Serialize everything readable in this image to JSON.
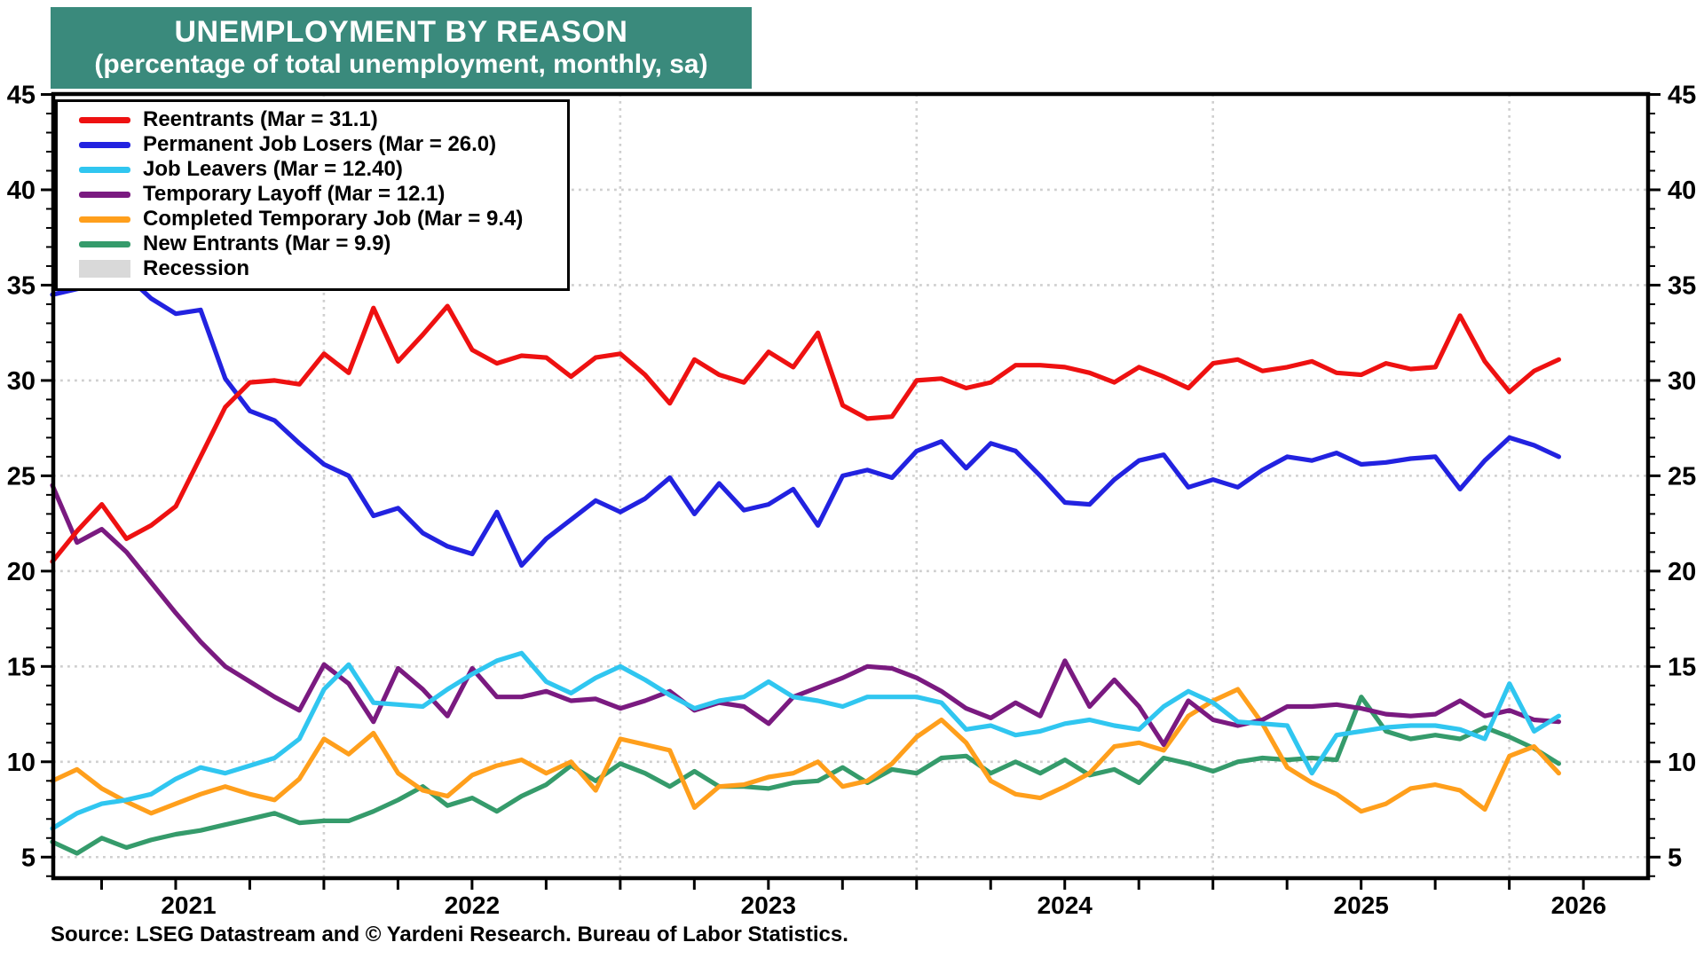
{
  "title": {
    "line1": "UNEMPLOYMENT BY REASON",
    "line2": "(percentage of total unemployment, monthly, sa)"
  },
  "source": "Source: LSEG Datastream and © Yardeni Research. Bureau of Labor Statistics.",
  "legend": {
    "items": [
      {
        "label": "Reentrants (Mar = 31.1)",
        "color": "#ee1111",
        "type": "line"
      },
      {
        "label": "Permanent Job Losers (Mar = 26.0)",
        "color": "#2222e0",
        "type": "line"
      },
      {
        "label": "Job Leavers (Mar = 12.40)",
        "color": "#30c6f0",
        "type": "line"
      },
      {
        "label": "Temporary Layoff (Mar = 12.1)",
        "color": "#7a1a80",
        "type": "line"
      },
      {
        "label": "Completed Temporary Job (Mar = 9.4)",
        "color": "#ff9f1c",
        "type": "line"
      },
      {
        "label": "New Entrants (Mar = 9.9)",
        "color": "#359b6b",
        "type": "line"
      },
      {
        "label": "Recession",
        "color": "#d9d9d9",
        "type": "band"
      }
    ]
  },
  "axes": {
    "y_major_ticks": [
      45,
      40,
      35,
      30,
      25,
      20,
      15,
      10,
      5
    ],
    "y_minor_step": 1,
    "y_range": [
      3.9,
      45
    ],
    "x_year_labels": [
      "2021",
      "2022",
      "2023",
      "2024",
      "2025",
      "2026"
    ],
    "grid": "dotted light-gray, horizontal every 5 units, vertical at each January"
  },
  "chart_data": {
    "type": "line",
    "title": "UNEMPLOYMENT BY REASON",
    "subtitle": "(percentage of total unemployment, monthly, sa)",
    "ylabel": "percent of total unemployment",
    "ylim": [
      5,
      45
    ],
    "legend_position": "top-left",
    "frequency": "monthly",
    "start_month": "2021-02",
    "end_month": "2026-03",
    "series": [
      {
        "name": "Reentrants (Mar = 31.1)",
        "color": "#ee1111",
        "values": [
          20.5,
          22.1,
          23.5,
          21.7,
          22.4,
          23.4,
          26.0,
          28.6,
          29.9,
          30.0,
          29.8,
          31.4,
          30.4,
          33.8,
          31.0,
          32.4,
          33.9,
          31.6,
          30.9,
          31.3,
          31.2,
          30.2,
          31.2,
          31.4,
          30.3,
          28.8,
          31.1,
          30.3,
          29.9,
          31.5,
          30.7,
          32.5,
          28.7,
          28.0,
          28.1,
          30.0,
          30.1,
          29.6,
          29.9,
          30.8,
          30.8,
          30.7,
          30.4,
          29.9,
          30.7,
          30.2,
          29.6,
          30.9,
          31.1,
          30.5,
          30.7,
          31.0,
          30.4,
          30.3,
          30.9,
          30.6,
          30.7,
          33.4,
          31.0,
          29.4,
          30.5,
          31.1
        ]
      },
      {
        "name": "Permanent Job Losers (Mar = 26.0)",
        "color": "#2222e0",
        "values": [
          34.5,
          34.8,
          35.0,
          35.5,
          34.3,
          33.5,
          33.7,
          30.1,
          28.4,
          27.9,
          26.7,
          25.6,
          25.0,
          22.9,
          23.3,
          22.0,
          21.3,
          20.9,
          23.1,
          20.3,
          21.7,
          22.7,
          23.7,
          23.1,
          23.8,
          24.9,
          23.0,
          24.6,
          23.2,
          23.5,
          24.3,
          22.4,
          25.0,
          25.3,
          24.9,
          26.3,
          26.8,
          25.4,
          26.7,
          26.3,
          25.0,
          23.6,
          23.5,
          24.8,
          25.8,
          26.1,
          24.4,
          24.8,
          24.4,
          25.3,
          26.0,
          25.8,
          26.2,
          25.6,
          25.7,
          25.9,
          26.0,
          24.3,
          25.8,
          27.0,
          26.6,
          26.0
        ]
      },
      {
        "name": "Job Leavers (Mar = 12.40)",
        "color": "#30c6f0",
        "values": [
          6.5,
          7.3,
          7.8,
          8.0,
          8.3,
          9.1,
          9.7,
          9.4,
          9.8,
          10.2,
          11.2,
          13.8,
          15.1,
          13.1,
          13.0,
          12.9,
          13.8,
          14.6,
          15.3,
          15.7,
          14.2,
          13.6,
          14.4,
          15.0,
          14.3,
          13.5,
          12.8,
          13.2,
          13.4,
          14.2,
          13.4,
          13.2,
          12.9,
          13.4,
          13.4,
          13.4,
          13.1,
          11.7,
          11.9,
          11.4,
          11.6,
          12.0,
          12.2,
          11.9,
          11.7,
          12.9,
          13.7,
          13.1,
          12.1,
          12.0,
          11.9,
          9.4,
          11.4,
          11.6,
          11.8,
          11.9,
          11.9,
          11.7,
          11.2,
          14.1,
          11.6,
          12.4
        ]
      },
      {
        "name": "Temporary Layoff (Mar = 12.1)",
        "color": "#7a1a80",
        "values": [
          24.5,
          21.5,
          22.2,
          21.0,
          19.4,
          17.8,
          16.3,
          15.0,
          14.2,
          13.4,
          12.7,
          15.1,
          14.1,
          12.1,
          14.9,
          13.8,
          12.4,
          14.9,
          13.4,
          13.4,
          13.7,
          13.2,
          13.3,
          12.8,
          13.2,
          13.7,
          12.7,
          13.1,
          12.9,
          12.0,
          13.4,
          13.9,
          14.4,
          15.0,
          14.9,
          14.4,
          13.7,
          12.8,
          12.3,
          13.1,
          12.4,
          15.3,
          12.9,
          14.3,
          12.9,
          10.9,
          13.2,
          12.2,
          11.9,
          12.2,
          12.9,
          12.9,
          13.0,
          12.8,
          12.5,
          12.4,
          12.5,
          13.2,
          12.4,
          12.7,
          12.2,
          12.1
        ]
      },
      {
        "name": "Completed Temporary Job (Mar = 9.4)",
        "color": "#ff9f1c",
        "values": [
          9.0,
          9.6,
          8.6,
          7.9,
          7.3,
          7.8,
          8.3,
          8.7,
          8.3,
          8.0,
          9.1,
          11.2,
          10.4,
          11.5,
          9.4,
          8.5,
          8.2,
          9.3,
          9.8,
          10.1,
          9.4,
          10.0,
          8.5,
          11.2,
          10.9,
          10.6,
          7.6,
          8.7,
          8.8,
          9.2,
          9.4,
          10.0,
          8.7,
          9.0,
          9.9,
          11.3,
          12.2,
          11.0,
          9.0,
          8.3,
          8.1,
          8.7,
          9.4,
          10.8,
          11.0,
          10.6,
          12.4,
          13.2,
          13.8,
          12.0,
          9.7,
          8.9,
          8.3,
          7.4,
          7.8,
          8.6,
          8.8,
          8.5,
          7.5,
          10.3,
          10.8,
          9.4
        ]
      },
      {
        "name": "New Entrants (Mar = 9.9)",
        "color": "#359b6b",
        "values": [
          5.8,
          5.2,
          6.0,
          5.5,
          5.9,
          6.2,
          6.4,
          6.7,
          7.0,
          7.3,
          6.8,
          6.9,
          6.9,
          7.4,
          8.0,
          8.7,
          7.7,
          8.1,
          7.4,
          8.2,
          8.8,
          9.8,
          9.0,
          9.9,
          9.4,
          8.7,
          9.5,
          8.7,
          8.7,
          8.6,
          8.9,
          9.0,
          9.7,
          8.9,
          9.6,
          9.4,
          10.2,
          10.3,
          9.4,
          10.0,
          9.4,
          10.1,
          9.3,
          9.6,
          8.9,
          10.2,
          9.9,
          9.5,
          10.0,
          10.2,
          10.1,
          10.2,
          10.1,
          13.4,
          11.6,
          11.2,
          11.4,
          11.2,
          11.8,
          11.3,
          10.7,
          9.9
        ]
      }
    ],
    "recession_bands": []
  }
}
